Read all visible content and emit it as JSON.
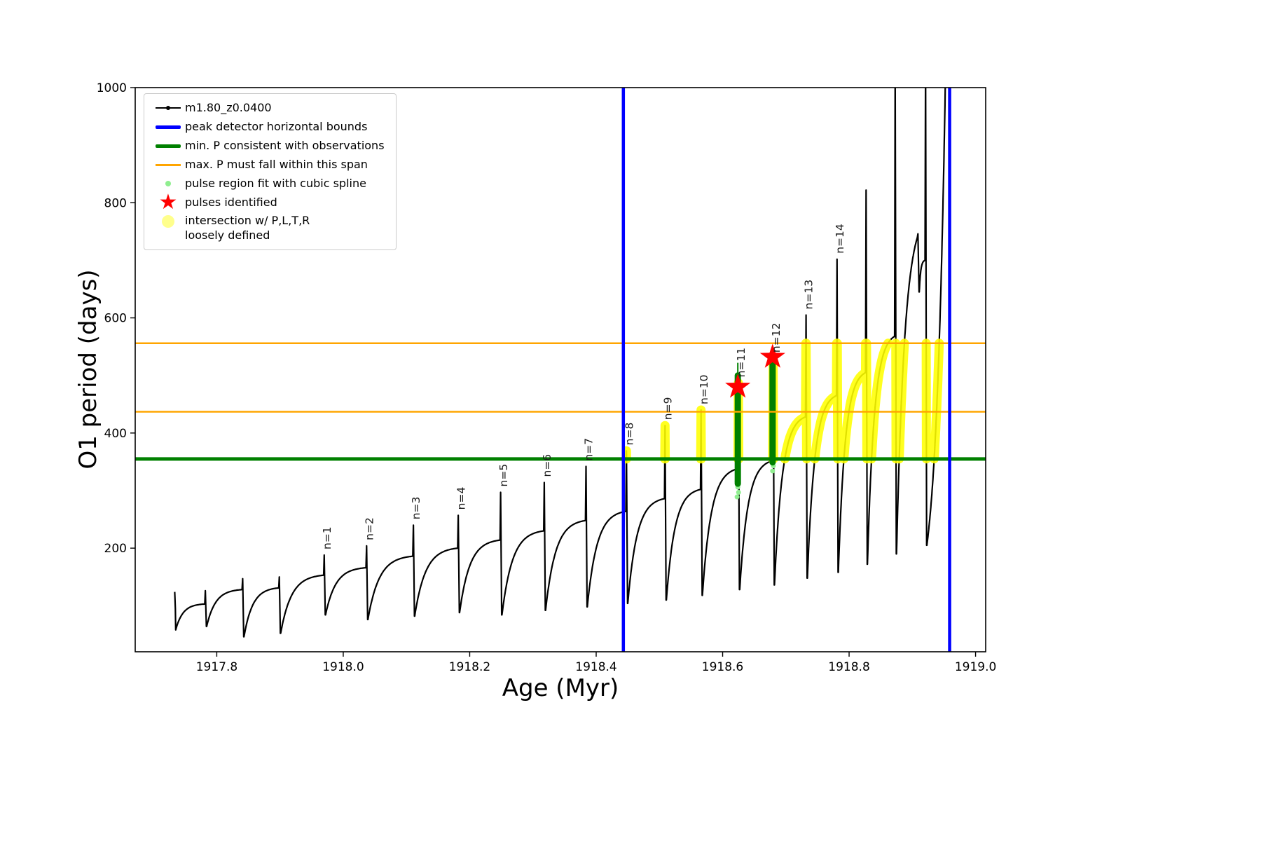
{
  "chart_data": {
    "type": "line",
    "title": "",
    "xlabel": "Age (Myr)",
    "ylabel": "O1 period (days)",
    "xlim": [
      1917.671,
      1919.016
    ],
    "ylim": [
      20,
      1000
    ],
    "grid": false,
    "legend_position": "upper left",
    "xticks": [
      {
        "v": 1917.8,
        "label": "1917.8"
      },
      {
        "v": 1918.0,
        "label": "1918.0"
      },
      {
        "v": 1918.2,
        "label": "1918.2"
      },
      {
        "v": 1918.4,
        "label": "1918.4"
      },
      {
        "v": 1918.6,
        "label": "1918.6"
      },
      {
        "v": 1918.8,
        "label": "1918.8"
      },
      {
        "v": 1919.0,
        "label": "1919.0"
      }
    ],
    "yticks": [
      {
        "v": 200,
        "label": "200"
      },
      {
        "v": 400,
        "label": "400"
      },
      {
        "v": 600,
        "label": "600"
      },
      {
        "v": 800,
        "label": "800"
      },
      {
        "v": 1000,
        "label": "1000"
      }
    ],
    "colors": {
      "series": "#000000",
      "bounds_blue": "#0000ff",
      "min_green": "#008000",
      "span_orange": "#ffa500",
      "spline_lightgreen": "#90ee90",
      "pulse_red": "#ff0000",
      "intersection_yellow": "#ffff00",
      "intersection_yellow_alpha": "rgba(255,255,0,0.45)",
      "tick_text": "#000000"
    },
    "vlines": {
      "x": [
        1918.443,
        1918.959
      ]
    },
    "hlines": {
      "min_P": 355,
      "max_P_span": [
        437,
        556
      ]
    },
    "band": {
      "v": [
        355,
        556
      ],
      "t": [
        1918.443,
        1918.962
      ]
    },
    "lead_points": [
      [
        1917.7335,
        124
      ],
      [
        1917.7345,
        95
      ]
    ],
    "pulses": [
      {
        "t0": 1917.735,
        "t1": 1917.781,
        "vmin": 58,
        "vsh": 103,
        "pk": 126
      },
      {
        "t0": 1917.784,
        "t1": 1917.84,
        "vmin": 64,
        "vsh": 128,
        "pk": 147
      },
      {
        "t0": 1917.843,
        "t1": 1917.898,
        "vmin": 46,
        "vsh": 131,
        "pk": 150
      },
      {
        "t0": 1917.901,
        "t1": 1917.969,
        "vmin": 52,
        "vsh": 153,
        "pk": 188,
        "label": "n=1"
      },
      {
        "t0": 1917.972,
        "t1": 1918.036,
        "vmin": 84,
        "vsh": 166,
        "pk": 204,
        "label": "n=2"
      },
      {
        "t0": 1918.039,
        "t1": 1918.11,
        "vmin": 76,
        "vsh": 186,
        "pk": 240,
        "label": "n=3"
      },
      {
        "t0": 1918.113,
        "t1": 1918.181,
        "vmin": 82,
        "vsh": 200,
        "pk": 257,
        "label": "n=4"
      },
      {
        "t0": 1918.184,
        "t1": 1918.248,
        "vmin": 88,
        "vsh": 214,
        "pk": 297,
        "label": "n=5"
      },
      {
        "t0": 1918.251,
        "t1": 1918.317,
        "vmin": 84,
        "vsh": 230,
        "pk": 314,
        "label": "n=6"
      },
      {
        "t0": 1918.32,
        "t1": 1918.383,
        "vmin": 92,
        "vsh": 248,
        "pk": 342,
        "label": "n=7"
      },
      {
        "t0": 1918.386,
        "t1": 1918.447,
        "vmin": 98,
        "vsh": 264,
        "pk": 369,
        "label": "n=8"
      },
      {
        "t0": 1918.45,
        "t1": 1918.508,
        "vmin": 104,
        "vsh": 286,
        "pk": 413,
        "label": "n=9"
      },
      {
        "t0": 1918.511,
        "t1": 1918.565,
        "vmin": 110,
        "vsh": 302,
        "pk": 440,
        "label": "n=10"
      },
      {
        "t0": 1918.568,
        "t1": 1918.624,
        "vmin": 118,
        "vsh": 338,
        "pk": 487,
        "label": "n=11"
      },
      {
        "t0": 1918.627,
        "t1": 1918.679,
        "vmin": 128,
        "vsh": 352,
        "pk": 530,
        "label": "n=12"
      },
      {
        "t0": 1918.682,
        "t1": 1918.731,
        "vmin": 136,
        "vsh": 428,
        "pk": 605,
        "label": "n=13"
      },
      {
        "t0": 1918.734,
        "t1": 1918.78,
        "vmin": 148,
        "vsh": 465,
        "pk": 702,
        "label": "n=14"
      },
      {
        "t0": 1918.783,
        "t1": 1918.826,
        "vmin": 158,
        "vsh": 505,
        "pk": 822
      },
      {
        "t0": 1918.829,
        "t1": 1918.872,
        "vmin": 172,
        "vsh": 568,
        "pk": 1040
      },
      {
        "t0": 1918.875,
        "t1": 1918.908,
        "vmin": 190,
        "vsh": 740,
        "pk": 746,
        "k": 2.5
      },
      {
        "t0": 1918.911,
        "t1": 1918.92,
        "vmin": 645,
        "vsh": 700,
        "pk": 1045
      },
      {
        "t0": 1918.923,
        "t1": 1918.952,
        "vmin": 205,
        "vsh": 995,
        "pk": 1045,
        "k": -2
      }
    ],
    "fit_bars": [
      {
        "t": 1918.624,
        "v0": 312,
        "v1": 500,
        "tip": 522
      },
      {
        "t": 1918.679,
        "v0": 349,
        "v1": 527,
        "tip": 530
      }
    ],
    "spline_dots": [
      [
        1918.6228,
        289
      ],
      [
        1918.6252,
        297
      ],
      [
        1918.624,
        306
      ],
      [
        1918.6228,
        316
      ],
      [
        1918.679,
        334
      ],
      [
        1918.6802,
        343
      ]
    ],
    "stars": [
      {
        "t": 1918.624,
        "v": 480
      },
      {
        "t": 1918.679,
        "v": 532
      }
    ],
    "legend": {
      "star_glyph": "★",
      "items": [
        {
          "label": "m1.80_z0.0400",
          "marker": "line-dot"
        },
        {
          "label": "peak detector horizontal bounds",
          "marker": "thick-line-blue"
        },
        {
          "label": "min. P consistent with observations",
          "marker": "thick-line-green"
        },
        {
          "label": "max. P must fall within this span",
          "marker": "line-orange"
        },
        {
          "label": "pulse region fit with cubic spline",
          "marker": "dot-lightgreen"
        },
        {
          "label": "pulses identified",
          "marker": "star-red"
        },
        {
          "label": "intersection w/ P,L,T,R\nloosely defined",
          "marker": "dot-yellow"
        }
      ]
    }
  }
}
